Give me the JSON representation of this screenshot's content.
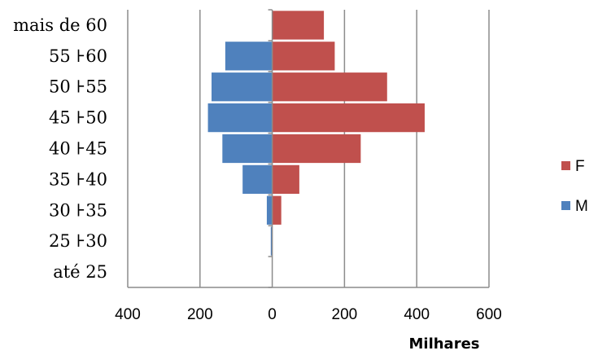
{
  "chart_data": {
    "type": "bar",
    "orientation": "horizontal",
    "categories": [
      "até 25",
      "25 ⊦30",
      "30 ⊦35",
      "35 ⊦40",
      "40 ⊦45",
      "45 ⊦50",
      "50 ⊦55",
      "55 ⊦60",
      "mais de 60"
    ],
    "series": [
      {
        "name": "F",
        "color": "#c0504d",
        "values": [
          0,
          0,
          25,
          75,
          245,
          422,
          318,
          173,
          143
        ]
      },
      {
        "name": "M",
        "color": "#4f81bd",
        "values": [
          0,
          -4,
          -15,
          -82,
          -138,
          -178,
          -168,
          -130,
          0
        ]
      }
    ],
    "xlim": [
      -400,
      600
    ],
    "x_ticks": [
      -400,
      -200,
      0,
      200,
      400,
      600
    ],
    "x_tick_labels": [
      "400",
      "200",
      "0",
      "200",
      "400",
      "600"
    ],
    "xlabel": "Milhares",
    "grid": "vertical",
    "legend_position": "right"
  }
}
